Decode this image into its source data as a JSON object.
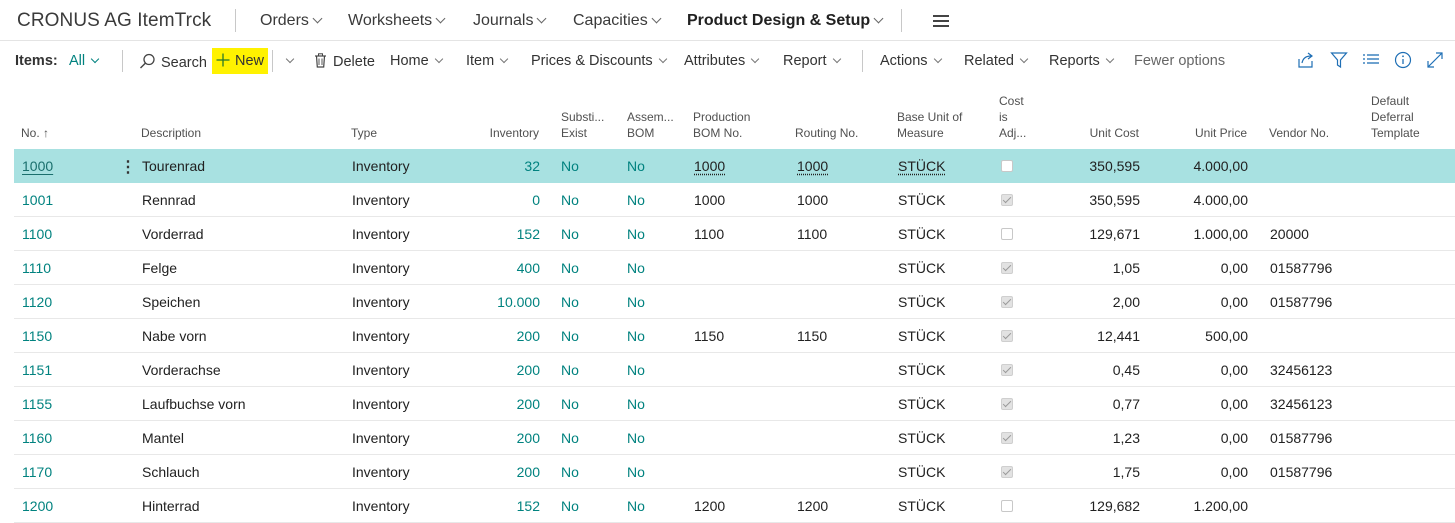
{
  "app": {
    "title": "CRONUS AG ItemTrck"
  },
  "nav": {
    "items": [
      "Orders",
      "Worksheets",
      "Journals",
      "Capacities",
      "Product Design & Setup"
    ],
    "active_index": 4
  },
  "actionbar": {
    "filter_label": "Items:",
    "filter_value": "All",
    "search": "Search",
    "new": "New",
    "delete": "Delete",
    "menus": [
      "Home",
      "Item",
      "Prices & Discounts",
      "Attributes",
      "Report"
    ],
    "menus2": [
      "Actions",
      "Related",
      "Reports"
    ],
    "fewer_options": "Fewer options",
    "highlight_color": "#fff200"
  },
  "table": {
    "headers": {
      "no": "No. ↑",
      "description": "Description",
      "type": "Type",
      "inventory": "Inventory",
      "subst": [
        "Substi...",
        "Exist"
      ],
      "assem": [
        "Assem...",
        "BOM"
      ],
      "prodbom": [
        "Production",
        "BOM No."
      ],
      "routing": "Routing No.",
      "baseunit": [
        "Base Unit of",
        "Measure"
      ],
      "costadj": [
        "Cost",
        "is",
        "Adj..."
      ],
      "unitcost": "Unit Cost",
      "unitprice": "Unit Price",
      "vendor": "Vendor No.",
      "deferral": [
        "Default",
        "Deferral",
        "Template"
      ]
    },
    "rows": [
      {
        "no": "1000",
        "desc": "Tourenrad",
        "type": "Inventory",
        "inv": "32",
        "subst": "No",
        "assem": "No",
        "prodbom": "1000",
        "routing": "1000",
        "unit": "STÜCK",
        "costadj": false,
        "cost": "350,595",
        "price": "4.000,00",
        "vendor": ""
      },
      {
        "no": "1001",
        "desc": "Rennrad",
        "type": "Inventory",
        "inv": "0",
        "subst": "No",
        "assem": "No",
        "prodbom": "1000",
        "routing": "1000",
        "unit": "STÜCK",
        "costadj": true,
        "cost": "350,595",
        "price": "4.000,00",
        "vendor": ""
      },
      {
        "no": "1100",
        "desc": "Vorderrad",
        "type": "Inventory",
        "inv": "152",
        "subst": "No",
        "assem": "No",
        "prodbom": "1100",
        "routing": "1100",
        "unit": "STÜCK",
        "costadj": false,
        "cost": "129,671",
        "price": "1.000,00",
        "vendor": "20000"
      },
      {
        "no": "1110",
        "desc": "Felge",
        "type": "Inventory",
        "inv": "400",
        "subst": "No",
        "assem": "No",
        "prodbom": "",
        "routing": "",
        "unit": "STÜCK",
        "costadj": true,
        "cost": "1,05",
        "price": "0,00",
        "vendor": "01587796"
      },
      {
        "no": "1120",
        "desc": "Speichen",
        "type": "Inventory",
        "inv": "10.000",
        "subst": "No",
        "assem": "No",
        "prodbom": "",
        "routing": "",
        "unit": "STÜCK",
        "costadj": true,
        "cost": "2,00",
        "price": "0,00",
        "vendor": "01587796"
      },
      {
        "no": "1150",
        "desc": "Nabe vorn",
        "type": "Inventory",
        "inv": "200",
        "subst": "No",
        "assem": "No",
        "prodbom": "1150",
        "routing": "1150",
        "unit": "STÜCK",
        "costadj": true,
        "cost": "12,441",
        "price": "500,00",
        "vendor": ""
      },
      {
        "no": "1151",
        "desc": "Vorderachse",
        "type": "Inventory",
        "inv": "200",
        "subst": "No",
        "assem": "No",
        "prodbom": "",
        "routing": "",
        "unit": "STÜCK",
        "costadj": true,
        "cost": "0,45",
        "price": "0,00",
        "vendor": "32456123"
      },
      {
        "no": "1155",
        "desc": "Laufbuchse vorn",
        "type": "Inventory",
        "inv": "200",
        "subst": "No",
        "assem": "No",
        "prodbom": "",
        "routing": "",
        "unit": "STÜCK",
        "costadj": true,
        "cost": "0,77",
        "price": "0,00",
        "vendor": "32456123"
      },
      {
        "no": "1160",
        "desc": "Mantel",
        "type": "Inventory",
        "inv": "200",
        "subst": "No",
        "assem": "No",
        "prodbom": "",
        "routing": "",
        "unit": "STÜCK",
        "costadj": true,
        "cost": "1,23",
        "price": "0,00",
        "vendor": "01587796"
      },
      {
        "no": "1170",
        "desc": "Schlauch",
        "type": "Inventory",
        "inv": "200",
        "subst": "No",
        "assem": "No",
        "prodbom": "",
        "routing": "",
        "unit": "STÜCK",
        "costadj": true,
        "cost": "1,75",
        "price": "0,00",
        "vendor": "01587796"
      },
      {
        "no": "1200",
        "desc": "Hinterrad",
        "type": "Inventory",
        "inv": "152",
        "subst": "No",
        "assem": "No",
        "prodbom": "1200",
        "routing": "1200",
        "unit": "STÜCK",
        "costadj": false,
        "cost": "129,682",
        "price": "1.200,00",
        "vendor": ""
      }
    ],
    "selected_row": 0
  },
  "colors": {
    "accent": "#00827f",
    "selected_row": "#a8e1e1"
  }
}
